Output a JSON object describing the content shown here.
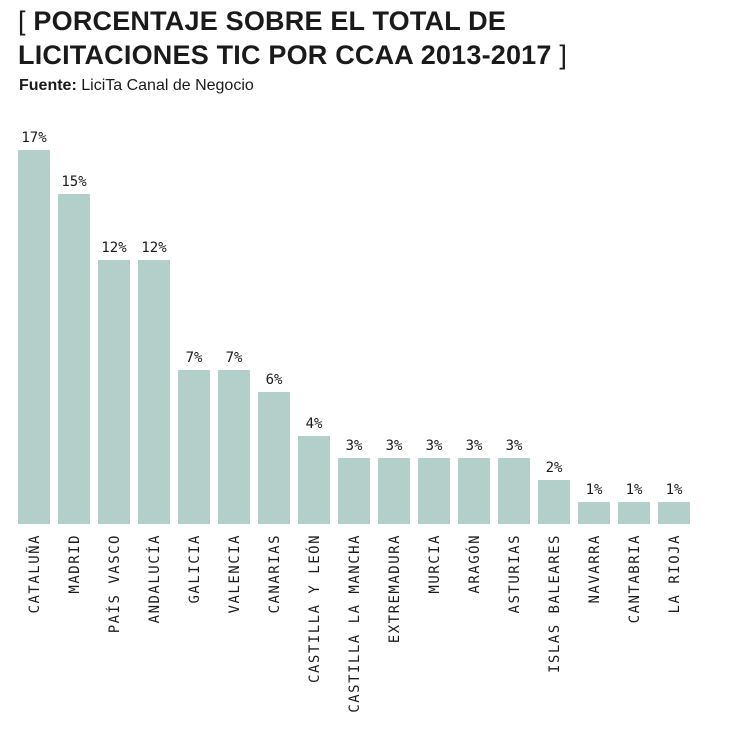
{
  "header": {
    "title_line1": "PORCENTAJE SOBRE EL TOTAL DE",
    "title_line2": "LICITACIONES TIC POR CCAA 2013-2017",
    "bracket_open": "[",
    "bracket_close": "]"
  },
  "source": {
    "label": "Fuente:",
    "value": "LiciTa Canal de Negocio"
  },
  "chart_data": {
    "type": "bar",
    "title": "PORCENTAJE SOBRE EL TOTAL DE LICITACIONES TIC POR CCAA 2013-2017",
    "categories": [
      "CATALUÑA",
      "MADRID",
      "PAÍS VASCO",
      "ANDALUCÍA",
      "GALICIA",
      "VALENCIA",
      "CANARIAS",
      "CASTILLA Y LEÓN",
      "CASTILLA LA MANCHA",
      "EXTREMADURA",
      "MURCIA",
      "ARAGÓN",
      "ASTURIAS",
      "ISLAS BALEARES",
      "NAVARRA",
      "CANTABRIA",
      "LA RIOJA"
    ],
    "values": [
      17,
      15,
      12,
      12,
      7,
      7,
      6,
      4,
      3,
      3,
      3,
      3,
      3,
      2,
      1,
      1,
      1
    ],
    "value_labels": [
      "17%",
      "15%",
      "12%",
      "12%",
      "7%",
      "7%",
      "6%",
      "4%",
      "3%",
      "3%",
      "3%",
      "3%",
      "3%",
      "2%",
      "1%",
      "1%",
      "1%"
    ],
    "xlabel": "",
    "ylabel": "",
    "grid": false,
    "bar_color": "#b2d0c9"
  }
}
